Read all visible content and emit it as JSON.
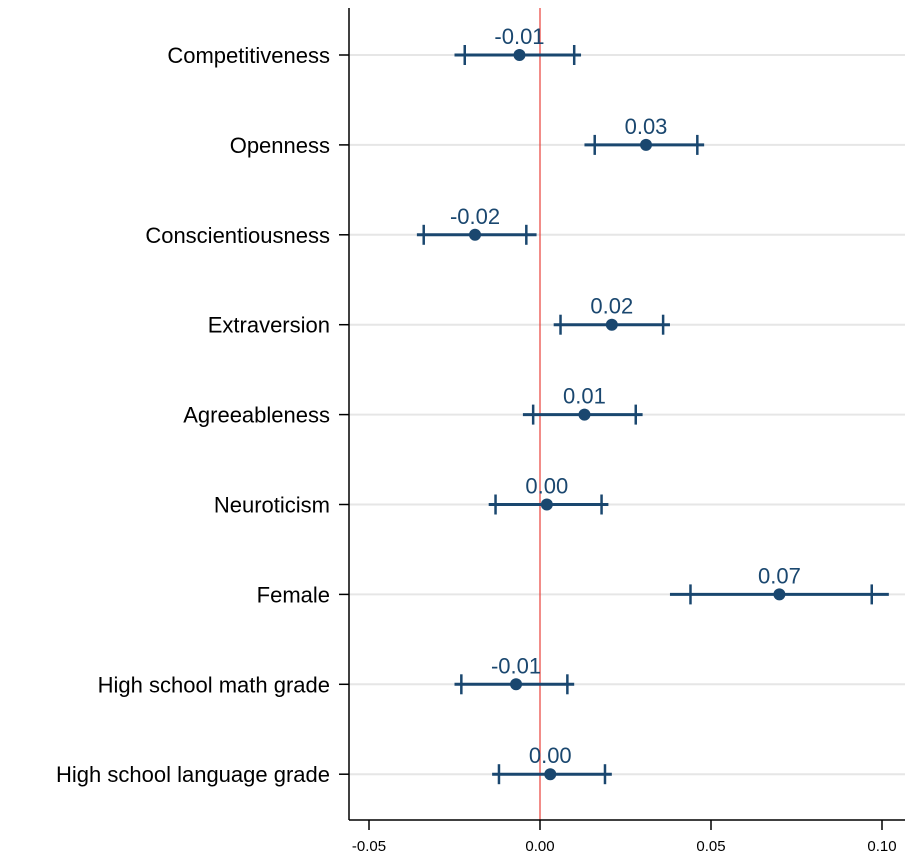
{
  "chart_data": {
    "type": "scatter",
    "orientation": "horizontal",
    "subtype": "coefficient-plot",
    "title": "",
    "xlabel": "",
    "ylabel": "",
    "xlim": [
      -0.055,
      0.105
    ],
    "xticks": [
      -0.05,
      0.0,
      0.05,
      0.1
    ],
    "xtick_labels": [
      "-0.05",
      "0.00",
      "0.05",
      "0.10"
    ],
    "reference_line": {
      "x": 0,
      "color": "#e8403a"
    },
    "grid": "horizontal",
    "legend": "none",
    "colors": {
      "marker": "#1a476f",
      "reference": "#e8403a",
      "grid": "#e6e6e6",
      "axis": "#000000"
    },
    "series": [
      {
        "categories": [
          "Competitiveness",
          "Openness",
          "Conscientiousness",
          "Extraversion",
          "Agreeableness",
          "Neuroticism",
          "Female",
          "High school math grade",
          "High school language grade"
        ],
        "estimates": [
          -0.006,
          0.031,
          -0.019,
          0.021,
          0.013,
          0.002,
          0.07,
          -0.007,
          0.003
        ],
        "ci90": [
          [
            -0.022,
            0.01
          ],
          [
            0.016,
            0.046
          ],
          [
            -0.034,
            -0.004
          ],
          [
            0.006,
            0.036
          ],
          [
            -0.002,
            0.028
          ],
          [
            -0.013,
            0.018
          ],
          [
            0.044,
            0.097
          ],
          [
            -0.023,
            0.008
          ],
          [
            -0.012,
            0.019
          ]
        ],
        "ci95": [
          [
            -0.025,
            0.012
          ],
          [
            0.013,
            0.048
          ],
          [
            -0.036,
            -0.001
          ],
          [
            0.004,
            0.038
          ],
          [
            -0.005,
            0.03
          ],
          [
            -0.015,
            0.02
          ],
          [
            0.038,
            0.102
          ],
          [
            -0.025,
            0.01
          ],
          [
            -0.014,
            0.021
          ]
        ],
        "labels": [
          "-0.01",
          "0.03",
          "-0.02",
          "0.02",
          "0.01",
          "0.00",
          "0.07",
          "-0.01",
          "0.00"
        ]
      }
    ]
  }
}
